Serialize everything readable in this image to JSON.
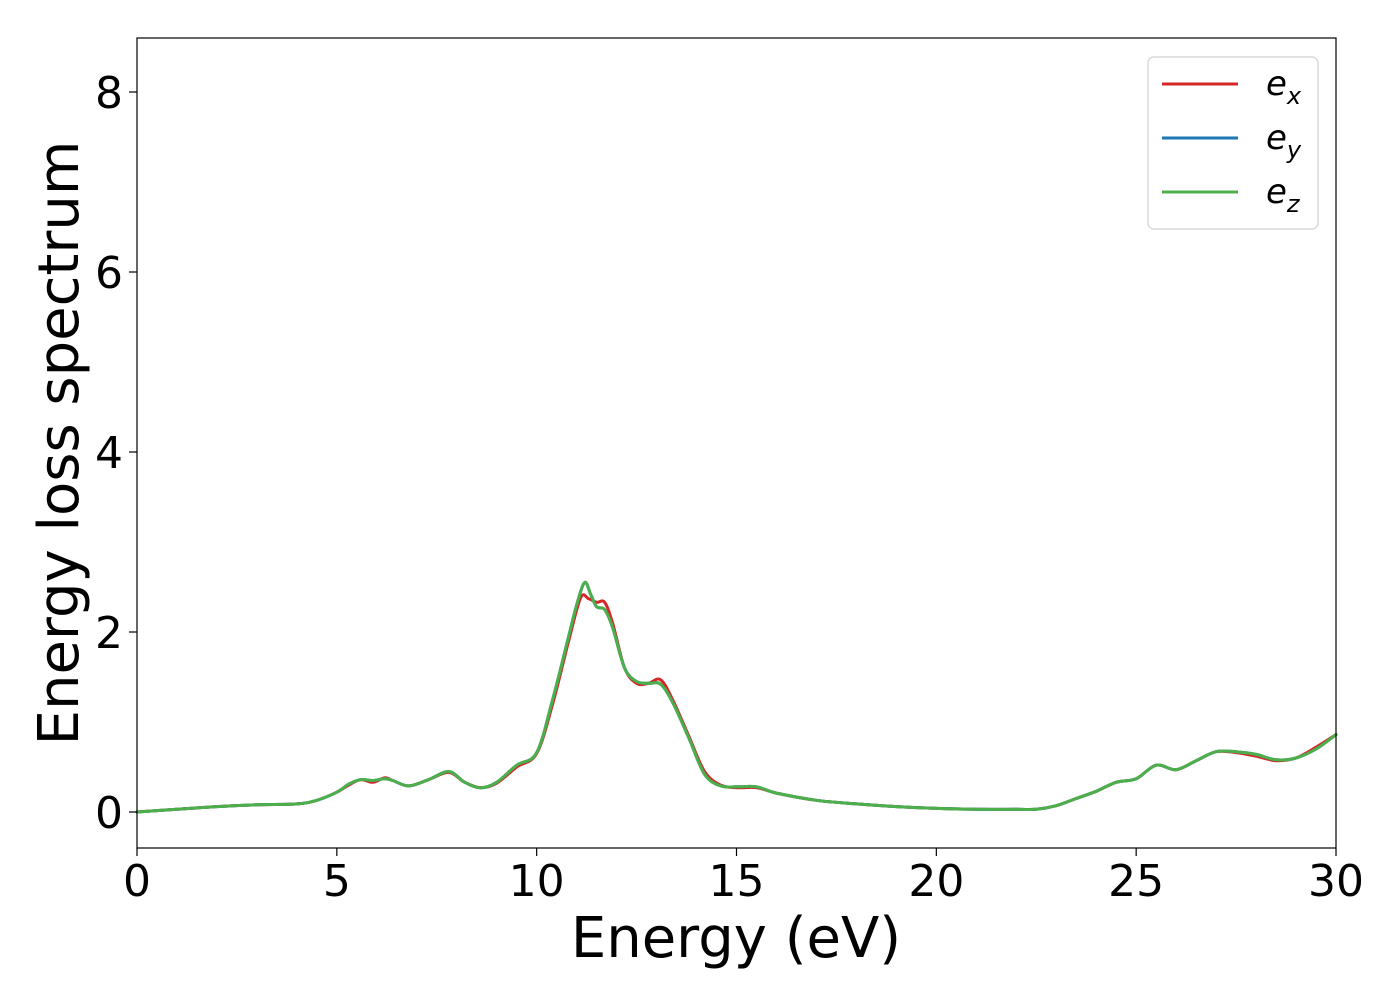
{
  "chart_data": {
    "type": "line",
    "xlabel": "Energy (eV)",
    "ylabel": "Energy loss spectrum",
    "xlim": [
      0,
      30
    ],
    "ylim": [
      -0.4,
      8.6
    ],
    "xticks": [
      0,
      5,
      10,
      15,
      20,
      25,
      30
    ],
    "yticks": [
      0,
      2,
      4,
      6,
      8
    ],
    "xtick_labels": [
      "0",
      "5",
      "10",
      "15",
      "20",
      "25",
      "30"
    ],
    "ytick_labels": [
      "0",
      "2",
      "4",
      "6",
      "8"
    ],
    "grid": false,
    "legend_position": "top-right",
    "legend": [
      {
        "base": "e",
        "sub": "x"
      },
      {
        "base": "e",
        "sub": "y"
      },
      {
        "base": "e",
        "sub": "z"
      }
    ],
    "series": [
      {
        "name": "e_x",
        "color": "#d62728",
        "x": [
          0,
          1,
          2,
          3,
          4,
          4.5,
          5,
          5.3,
          5.6,
          5.9,
          6.2,
          6.4,
          6.8,
          7.3,
          7.8,
          8.2,
          8.6,
          9.0,
          9.5,
          10.0,
          10.4,
          10.8,
          11.1,
          11.3,
          11.5,
          11.7,
          11.9,
          12.2,
          12.5,
          12.8,
          13.1,
          13.4,
          13.8,
          14.2,
          14.6,
          15.0,
          15.5,
          16.0,
          17.0,
          18.0,
          19.0,
          20.0,
          21.0,
          22.0,
          22.5,
          23.0,
          23.5,
          24.0,
          24.5,
          25.0,
          25.5,
          26.0,
          26.5,
          27.0,
          27.5,
          28.0,
          28.5,
          29.0,
          29.5,
          30.0
        ],
        "y": [
          0.0,
          0.03,
          0.06,
          0.08,
          0.09,
          0.13,
          0.22,
          0.3,
          0.36,
          0.33,
          0.38,
          0.35,
          0.29,
          0.36,
          0.44,
          0.33,
          0.27,
          0.32,
          0.5,
          0.65,
          1.2,
          1.9,
          2.38,
          2.37,
          2.33,
          2.33,
          2.1,
          1.6,
          1.43,
          1.43,
          1.47,
          1.25,
          0.85,
          0.45,
          0.3,
          0.27,
          0.27,
          0.21,
          0.13,
          0.09,
          0.06,
          0.04,
          0.03,
          0.03,
          0.03,
          0.07,
          0.15,
          0.23,
          0.33,
          0.37,
          0.52,
          0.47,
          0.57,
          0.67,
          0.66,
          0.62,
          0.57,
          0.6,
          0.72,
          0.86
        ]
      },
      {
        "name": "e_y",
        "color": "#1f77b4",
        "x": [
          0,
          1,
          2,
          3,
          4,
          4.5,
          5,
          5.3,
          5.6,
          5.9,
          6.2,
          6.4,
          6.8,
          7.3,
          7.8,
          8.2,
          8.6,
          9.0,
          9.5,
          10.0,
          10.4,
          10.8,
          11.0,
          11.2,
          11.35,
          11.5,
          11.7,
          11.9,
          12.2,
          12.5,
          12.8,
          13.1,
          13.4,
          13.8,
          14.2,
          14.6,
          15.0,
          15.5,
          16.0,
          17.0,
          18.0,
          19.0,
          20.0,
          21.0,
          22.0,
          22.5,
          23.0,
          23.5,
          24.0,
          24.5,
          25.0,
          25.5,
          26.0,
          26.5,
          27.0,
          27.5,
          28.0,
          28.5,
          29.0,
          29.5,
          30.0
        ],
        "y": [
          0.0,
          0.03,
          0.06,
          0.08,
          0.09,
          0.13,
          0.22,
          0.31,
          0.36,
          0.35,
          0.37,
          0.35,
          0.29,
          0.36,
          0.45,
          0.33,
          0.27,
          0.33,
          0.52,
          0.66,
          1.25,
          1.95,
          2.3,
          2.55,
          2.42,
          2.28,
          2.25,
          2.05,
          1.6,
          1.45,
          1.43,
          1.42,
          1.22,
          0.83,
          0.42,
          0.29,
          0.28,
          0.28,
          0.21,
          0.13,
          0.09,
          0.06,
          0.04,
          0.03,
          0.03,
          0.03,
          0.07,
          0.15,
          0.23,
          0.33,
          0.37,
          0.52,
          0.47,
          0.57,
          0.67,
          0.67,
          0.64,
          0.58,
          0.6,
          0.7,
          0.86
        ]
      },
      {
        "name": "e_z",
        "color": "#4daf4a",
        "x": [
          0,
          1,
          2,
          3,
          4,
          4.5,
          5,
          5.3,
          5.6,
          5.9,
          6.2,
          6.4,
          6.8,
          7.3,
          7.8,
          8.2,
          8.6,
          9.0,
          9.5,
          10.0,
          10.4,
          10.8,
          11.0,
          11.2,
          11.35,
          11.5,
          11.7,
          11.9,
          12.2,
          12.5,
          12.8,
          13.1,
          13.4,
          13.8,
          14.2,
          14.6,
          15.0,
          15.5,
          16.0,
          17.0,
          18.0,
          19.0,
          20.0,
          21.0,
          22.0,
          22.5,
          23.0,
          23.5,
          24.0,
          24.5,
          25.0,
          25.5,
          26.0,
          26.5,
          27.0,
          27.5,
          28.0,
          28.5,
          29.0,
          29.5,
          30.0
        ],
        "y": [
          0.0,
          0.03,
          0.06,
          0.08,
          0.09,
          0.13,
          0.22,
          0.31,
          0.36,
          0.35,
          0.37,
          0.35,
          0.29,
          0.36,
          0.45,
          0.33,
          0.27,
          0.33,
          0.52,
          0.66,
          1.25,
          1.95,
          2.3,
          2.55,
          2.42,
          2.28,
          2.25,
          2.05,
          1.6,
          1.45,
          1.43,
          1.42,
          1.22,
          0.83,
          0.42,
          0.29,
          0.28,
          0.28,
          0.21,
          0.13,
          0.09,
          0.06,
          0.04,
          0.03,
          0.03,
          0.03,
          0.07,
          0.15,
          0.23,
          0.33,
          0.37,
          0.52,
          0.47,
          0.57,
          0.67,
          0.67,
          0.64,
          0.58,
          0.6,
          0.7,
          0.86
        ]
      }
    ]
  }
}
